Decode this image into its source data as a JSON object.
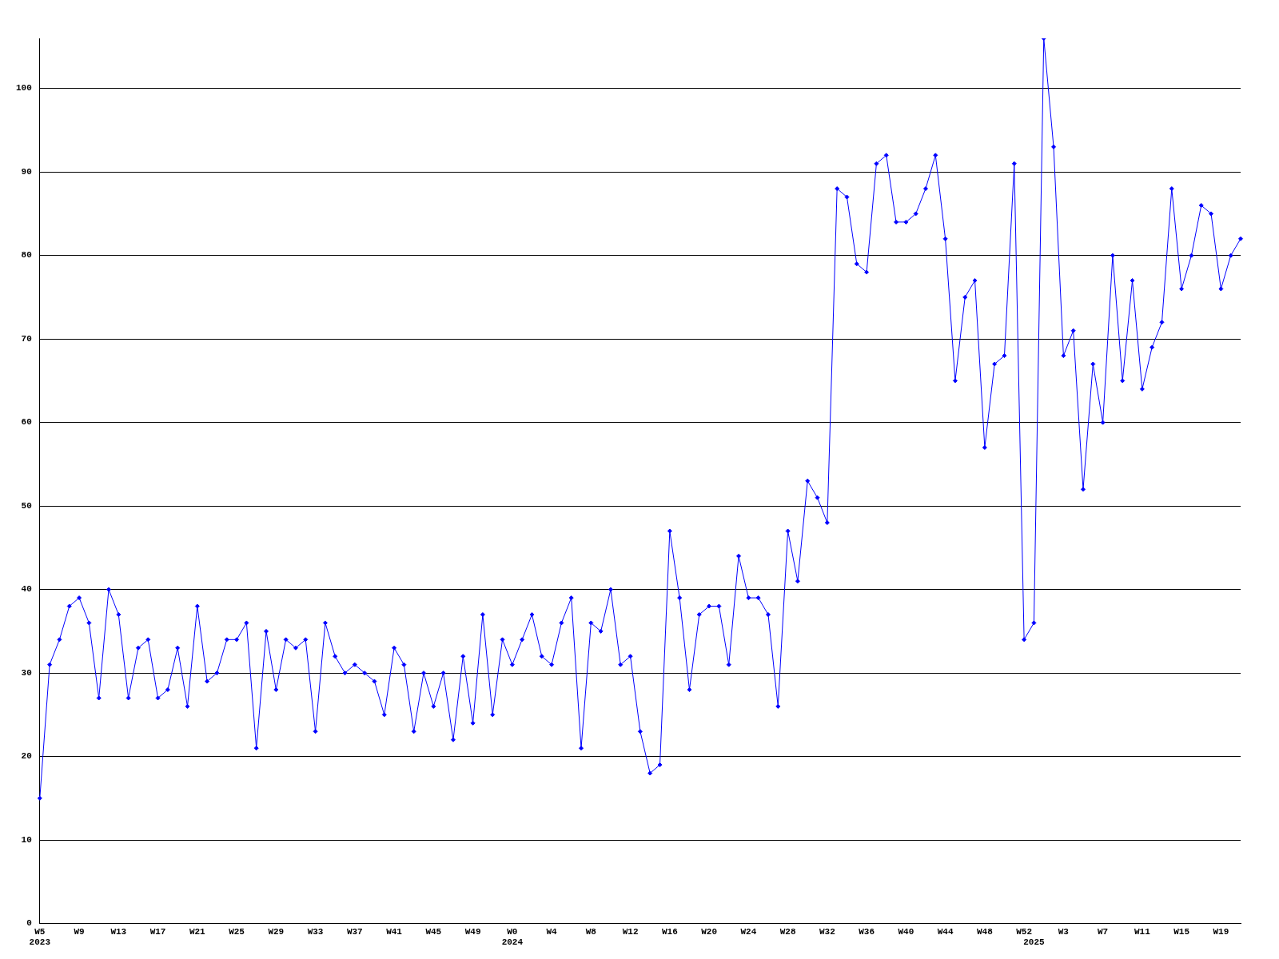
{
  "chart_data": {
    "type": "line",
    "categories": [
      "W5\n2023",
      null,
      null,
      null,
      "W9",
      null,
      null,
      null,
      "W13",
      null,
      null,
      null,
      "W17",
      null,
      null,
      null,
      "W21",
      null,
      null,
      null,
      "W25",
      null,
      null,
      null,
      "W29",
      null,
      null,
      null,
      "W33",
      null,
      null,
      null,
      "W37",
      null,
      null,
      null,
      "W41",
      null,
      null,
      null,
      "W45",
      null,
      null,
      null,
      "W49",
      null,
      null,
      null,
      "W0\n2024",
      null,
      null,
      null,
      "W4",
      null,
      null,
      null,
      "W8",
      null,
      null,
      null,
      "W12",
      null,
      null,
      null,
      "W16",
      null,
      null,
      null,
      "W20",
      null,
      null,
      null,
      "W24",
      null,
      null,
      null,
      "W28",
      null,
      null,
      null,
      "W32",
      null,
      null,
      null,
      "W36",
      null,
      null,
      null,
      "W40",
      null,
      null,
      null,
      "W44",
      null,
      null,
      null,
      "W48",
      null,
      null,
      null,
      "W52",
      "\n2025",
      null,
      null,
      "W3",
      null,
      null,
      null,
      "W7",
      null,
      null,
      null,
      "W11",
      null,
      null,
      null,
      "W15",
      null,
      null,
      null,
      "W19",
      null,
      null
    ],
    "series": [
      {
        "color": "#0000ff",
        "values": [
          15,
          31,
          34,
          38,
          39,
          36,
          27,
          40,
          37,
          27,
          33,
          34,
          27,
          28,
          33,
          26,
          38,
          29,
          30,
          34,
          34,
          36,
          21,
          35,
          28,
          34,
          33,
          34,
          23,
          36,
          32,
          30,
          31,
          30,
          29,
          25,
          33,
          31,
          23,
          30,
          26,
          30,
          22,
          32,
          24,
          37,
          25,
          34,
          31,
          34,
          37,
          32,
          31,
          36,
          39,
          21,
          36,
          35,
          40,
          31,
          32,
          23,
          18,
          19,
          47,
          39,
          28,
          37,
          38,
          38,
          31,
          44,
          39,
          39,
          37,
          26,
          47,
          41,
          53,
          51,
          48,
          88,
          87,
          79,
          78,
          91,
          92,
          84,
          84,
          85,
          88,
          92,
          82,
          65,
          75,
          77,
          57,
          67,
          68,
          91,
          34,
          36,
          106,
          93,
          68,
          71,
          52,
          67,
          60,
          80,
          65,
          77,
          64,
          69,
          72,
          88,
          76,
          80,
          86,
          85,
          76,
          80,
          82
        ]
      }
    ],
    "ylim": [
      0,
      106
    ],
    "yticks": [
      0,
      10,
      20,
      30,
      40,
      50,
      60,
      70,
      80,
      90,
      100
    ],
    "grid": "y",
    "legend": false,
    "marker": "diamond",
    "line_style": "solid"
  }
}
